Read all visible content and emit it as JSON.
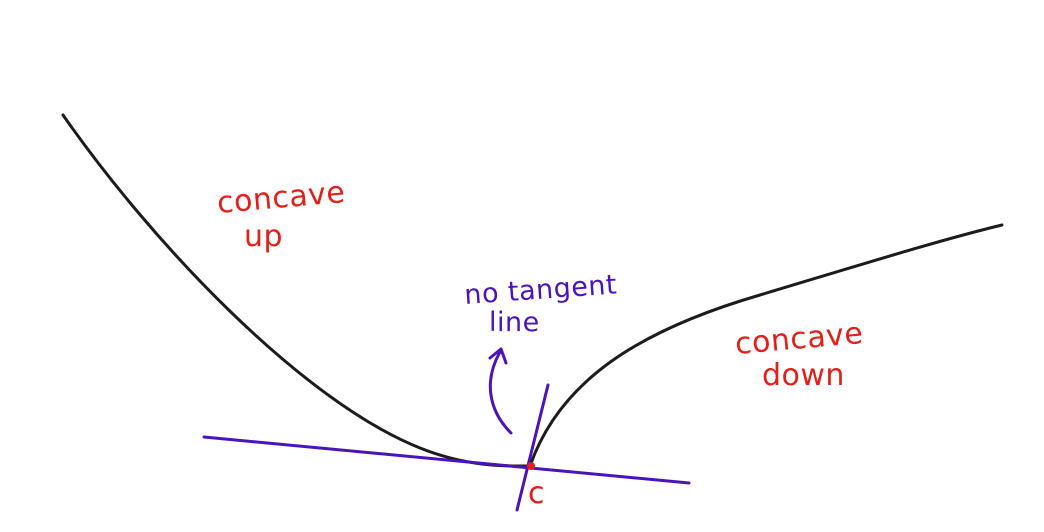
{
  "labels": {
    "concave_up_line1": "concave",
    "concave_up_line2": "up",
    "concave_down_line1": "concave",
    "concave_down_line2": "down",
    "no_tangent_line1": "no tangent",
    "no_tangent_line2": "line",
    "point_label": "c"
  },
  "colors": {
    "curve": "#1c1c1c",
    "tangent": "#4a14b8",
    "annotation_red": "#e0201a",
    "point": "#e0201a"
  }
}
